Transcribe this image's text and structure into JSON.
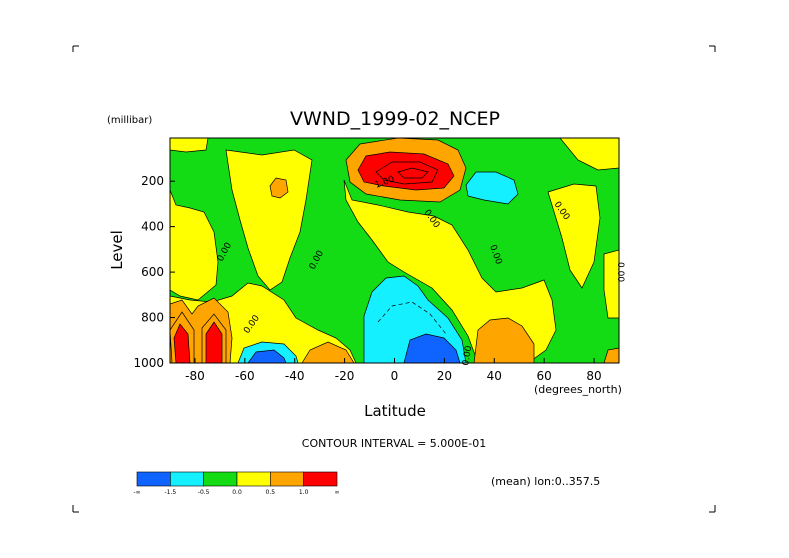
{
  "chart_data": {
    "type": "contour",
    "title": "VWND_1999-02_NCEP",
    "xlabel": "Latitude",
    "x_units": "(degrees_north)",
    "ylabel": "Level",
    "y_units": "(millibar)",
    "xlim": [
      -90,
      90
    ],
    "ylim": [
      1000,
      10
    ],
    "xticks": [
      "-80",
      "-60",
      "-40",
      "-20",
      "0",
      "20",
      "40",
      "60",
      "80"
    ],
    "yticks": [
      "200",
      "400",
      "600",
      "800",
      "1000"
    ],
    "contour_interval_text": "CONTOUR INTERVAL = 5.000E-01",
    "footnote": "(mean) lon:0..357.5",
    "contour_labels": [
      "0.00",
      "0.00",
      "0.00",
      "0.00",
      "0.00",
      "0.00",
      "0.00",
      "0.00",
      "1.00"
    ],
    "colorbar": {
      "labels": [
        "-∞",
        "-1.5",
        "-0.5",
        "0.0",
        "0.5",
        "1.0",
        "∞"
      ],
      "colors": [
        "#0f64ff",
        "#14f0ff",
        "#14dc14",
        "#ffff00",
        "#ffa500",
        "#ff0000"
      ]
    }
  }
}
